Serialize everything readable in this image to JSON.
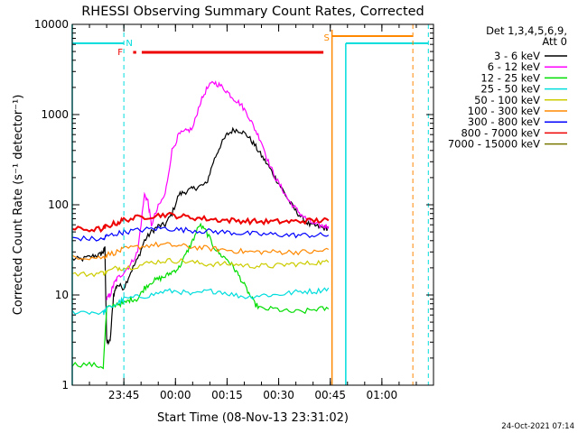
{
  "chart_data": {
    "type": "line",
    "title": "RHESSI Observing Summary Count Rates, Corrected",
    "xlabel": "Start Time (08-Nov-13 23:31:02)",
    "ylabel": "Corrected Count Rate (s⁻¹ detector⁻¹)",
    "y_scale": "log",
    "ylim": [
      1,
      10000
    ],
    "xlim_minutes": [
      -15,
      90
    ],
    "x_ticks": [
      {
        "label": "23:45",
        "minutes": 0
      },
      {
        "label": "00:00",
        "minutes": 15
      },
      {
        "label": "00:15",
        "minutes": 30
      },
      {
        "label": "00:30",
        "minutes": 45
      },
      {
        "label": "00:45",
        "minutes": 60
      },
      {
        "label": "01:00",
        "minutes": 75
      }
    ],
    "y_ticks": [
      {
        "label": "1",
        "value": 1
      },
      {
        "label": "10",
        "value": 10
      },
      {
        "label": "100",
        "value": 100
      },
      {
        "label": "1000",
        "value": 1000
      },
      {
        "label": "10000",
        "value": 10000
      }
    ],
    "legend_header": [
      "Det 1,3,4,5,6,9,",
      "Att 0"
    ],
    "legend_position": "top-right outside",
    "series": [
      {
        "name": "3 - 6 keV",
        "color": "#000000",
        "points": [
          [
            -15,
            25
          ],
          [
            -12,
            25
          ],
          [
            -9,
            27
          ],
          [
            -7,
            28
          ],
          [
            -6,
            30
          ],
          [
            -5.5,
            33
          ],
          [
            -5,
            3
          ],
          [
            -4,
            3
          ],
          [
            -3,
            10
          ],
          [
            -2,
            13
          ],
          [
            0,
            12
          ],
          [
            2,
            18
          ],
          [
            4,
            25
          ],
          [
            6,
            40
          ],
          [
            8,
            50
          ],
          [
            10,
            58
          ],
          [
            12,
            60
          ],
          [
            14,
            80
          ],
          [
            16,
            130
          ],
          [
            18,
            140
          ],
          [
            20,
            150
          ],
          [
            22,
            160
          ],
          [
            24,
            170
          ],
          [
            26,
            300
          ],
          [
            28,
            450
          ],
          [
            30,
            600
          ],
          [
            32,
            680
          ],
          [
            34,
            660
          ],
          [
            36,
            580
          ],
          [
            38,
            460
          ],
          [
            40,
            350
          ],
          [
            42,
            270
          ],
          [
            44,
            200
          ],
          [
            46,
            150
          ],
          [
            48,
            110
          ],
          [
            50,
            85
          ],
          [
            52,
            70
          ],
          [
            54,
            60
          ],
          [
            56,
            58
          ],
          [
            58,
            55
          ],
          [
            59.5,
            55
          ]
        ]
      },
      {
        "name": "6 - 12 keV",
        "color": "#ff00ff",
        "points": [
          [
            -5,
            9
          ],
          [
            -4,
            10
          ],
          [
            -3,
            13
          ],
          [
            -2,
            15
          ],
          [
            0,
            18
          ],
          [
            2,
            22
          ],
          [
            4,
            30
          ],
          [
            6,
            130
          ],
          [
            7,
            110
          ],
          [
            8,
            60
          ],
          [
            10,
            95
          ],
          [
            12,
            130
          ],
          [
            14,
            400
          ],
          [
            16,
            600
          ],
          [
            18,
            650
          ],
          [
            20,
            700
          ],
          [
            22,
            1300
          ],
          [
            24,
            1900
          ],
          [
            26,
            2300
          ],
          [
            28,
            2100
          ],
          [
            30,
            1800
          ],
          [
            32,
            1500
          ],
          [
            34,
            1300
          ],
          [
            36,
            1000
          ],
          [
            38,
            700
          ],
          [
            40,
            500
          ],
          [
            42,
            300
          ],
          [
            44,
            200
          ],
          [
            46,
            150
          ],
          [
            48,
            110
          ],
          [
            50,
            90
          ],
          [
            52,
            75
          ],
          [
            54,
            65
          ],
          [
            56,
            60
          ],
          [
            58,
            58
          ],
          [
            59.5,
            58
          ]
        ]
      },
      {
        "name": "12 - 25 keV",
        "color": "#00dd00",
        "points": [
          [
            -15,
            1.7
          ],
          [
            -10,
            1.7
          ],
          [
            -6,
            1.6
          ],
          [
            -5,
            7
          ],
          [
            -2,
            8
          ],
          [
            0,
            8
          ],
          [
            2,
            9
          ],
          [
            4,
            9
          ],
          [
            6,
            12
          ],
          [
            8,
            14
          ],
          [
            10,
            15
          ],
          [
            12,
            16
          ],
          [
            14,
            18
          ],
          [
            16,
            20
          ],
          [
            18,
            28
          ],
          [
            20,
            40
          ],
          [
            22,
            60
          ],
          [
            24,
            50
          ],
          [
            26,
            35
          ],
          [
            28,
            28
          ],
          [
            30,
            25
          ],
          [
            32,
            20
          ],
          [
            34,
            15
          ],
          [
            36,
            11
          ],
          [
            38,
            8
          ],
          [
            40,
            7
          ],
          [
            44,
            7
          ],
          [
            48,
            6.5
          ],
          [
            52,
            6.5
          ],
          [
            56,
            7
          ],
          [
            59.5,
            7
          ]
        ]
      },
      {
        "name": "25 - 50 keV",
        "color": "#00dddd",
        "points": [
          [
            -15,
            6.5
          ],
          [
            -10,
            6.5
          ],
          [
            -6,
            6.3
          ],
          [
            -5,
            7
          ],
          [
            -2,
            8
          ],
          [
            0,
            9
          ],
          [
            4,
            9.5
          ],
          [
            8,
            10
          ],
          [
            12,
            11
          ],
          [
            16,
            11
          ],
          [
            20,
            10
          ],
          [
            24,
            11
          ],
          [
            28,
            11
          ],
          [
            32,
            10
          ],
          [
            36,
            9.5
          ],
          [
            40,
            10
          ],
          [
            44,
            10
          ],
          [
            48,
            10.5
          ],
          [
            52,
            11
          ],
          [
            56,
            11
          ],
          [
            59.5,
            12
          ]
        ]
      },
      {
        "name": "50 - 100 keV",
        "color": "#cccc00",
        "points": [
          [
            -15,
            17
          ],
          [
            -10,
            17
          ],
          [
            -6,
            17.5
          ],
          [
            -5,
            18
          ],
          [
            -2,
            20
          ],
          [
            0,
            20
          ],
          [
            4,
            21
          ],
          [
            8,
            23
          ],
          [
            12,
            24
          ],
          [
            16,
            24
          ],
          [
            20,
            23
          ],
          [
            24,
            22
          ],
          [
            28,
            22
          ],
          [
            32,
            22
          ],
          [
            36,
            21
          ],
          [
            40,
            21
          ],
          [
            44,
            21
          ],
          [
            48,
            22
          ],
          [
            52,
            22
          ],
          [
            56,
            23
          ],
          [
            59.5,
            23
          ]
        ]
      },
      {
        "name": "100 - 300 keV",
        "color": "#ff8800",
        "points": [
          [
            -15,
            27
          ],
          [
            -10,
            26
          ],
          [
            -6,
            26
          ],
          [
            -5,
            28
          ],
          [
            -2,
            30
          ],
          [
            0,
            32
          ],
          [
            4,
            34
          ],
          [
            8,
            36
          ],
          [
            12,
            36
          ],
          [
            16,
            35
          ],
          [
            20,
            34
          ],
          [
            24,
            33
          ],
          [
            28,
            32
          ],
          [
            32,
            31
          ],
          [
            36,
            30
          ],
          [
            40,
            30
          ],
          [
            44,
            30
          ],
          [
            48,
            30
          ],
          [
            52,
            30
          ],
          [
            56,
            30
          ],
          [
            59.5,
            32
          ]
        ]
      },
      {
        "name": "300 - 800 keV",
        "color": "#0000ff",
        "points": [
          [
            -15,
            43
          ],
          [
            -10,
            42
          ],
          [
            -6,
            41
          ],
          [
            -5,
            45
          ],
          [
            -2,
            48
          ],
          [
            0,
            50
          ],
          [
            4,
            52
          ],
          [
            8,
            54
          ],
          [
            12,
            55
          ],
          [
            16,
            53
          ],
          [
            20,
            52
          ],
          [
            24,
            51
          ],
          [
            28,
            50
          ],
          [
            32,
            49
          ],
          [
            36,
            48
          ],
          [
            40,
            47
          ],
          [
            44,
            47
          ],
          [
            48,
            46
          ],
          [
            52,
            46
          ],
          [
            56,
            46
          ],
          [
            59.5,
            46
          ]
        ]
      },
      {
        "name": "800 - 7000 keV",
        "color": "#ee0000",
        "points": [
          [
            -15,
            54
          ],
          [
            -10,
            53
          ],
          [
            -6,
            54
          ],
          [
            -5,
            58
          ],
          [
            -2,
            63
          ],
          [
            0,
            68
          ],
          [
            4,
            72
          ],
          [
            8,
            75
          ],
          [
            12,
            78
          ],
          [
            16,
            75
          ],
          [
            20,
            72
          ],
          [
            24,
            70
          ],
          [
            28,
            68
          ],
          [
            32,
            67
          ],
          [
            36,
            66
          ],
          [
            40,
            65
          ],
          [
            44,
            65
          ],
          [
            48,
            65
          ],
          [
            52,
            66
          ],
          [
            56,
            67
          ],
          [
            59.5,
            67
          ]
        ]
      },
      {
        "name": "7000 - 15000 keV",
        "color": "#777700",
        "points": []
      }
    ],
    "markers": [
      {
        "label": "N",
        "color": "#00dddd"
      },
      {
        "label": "F",
        "color": "#ee0000"
      },
      {
        "label": "S",
        "color": "#ff8800"
      }
    ],
    "footer_date": "24-Oct-2021 07:14"
  }
}
